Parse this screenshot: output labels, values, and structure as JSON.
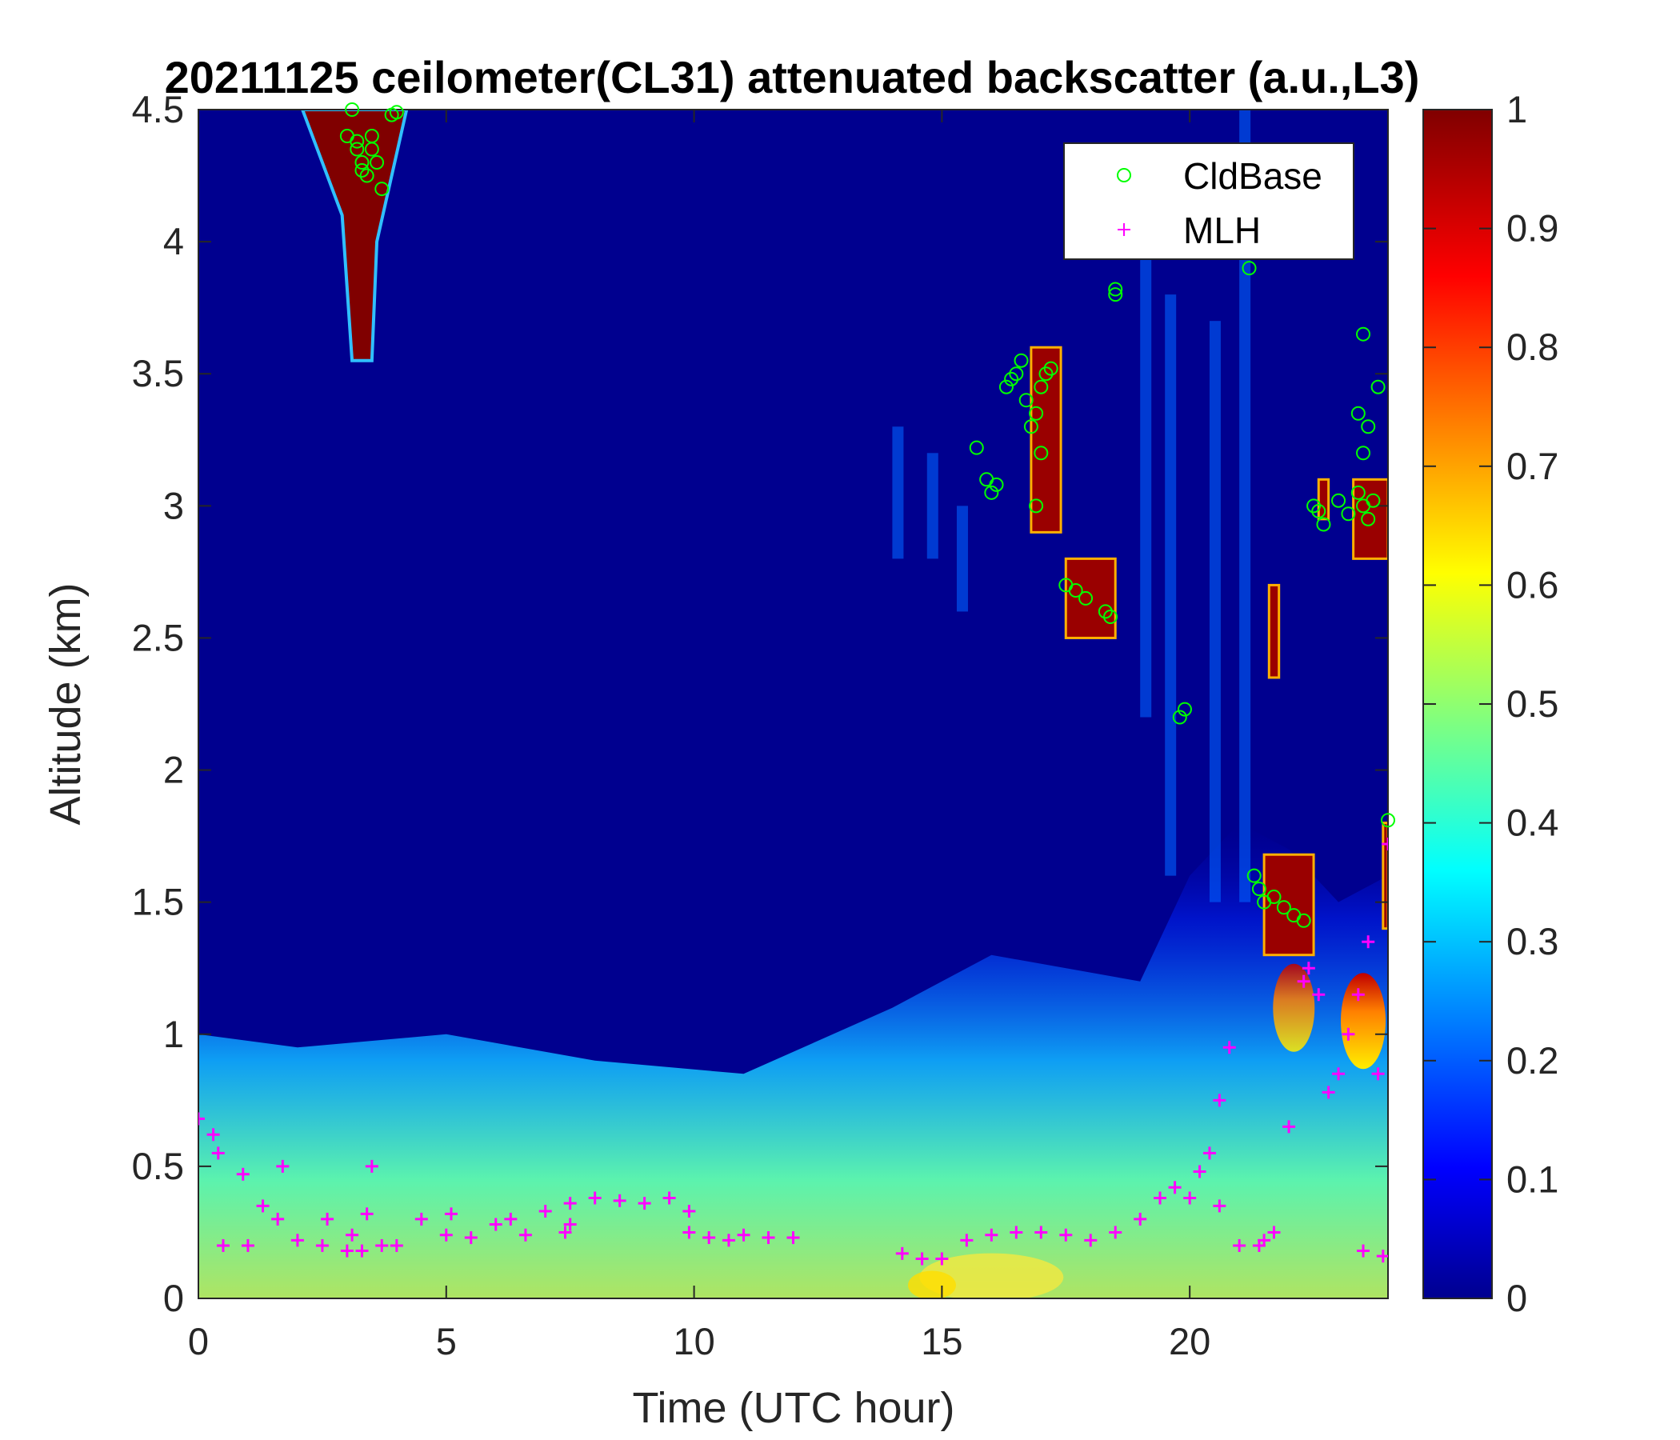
{
  "chart_data": {
    "type": "heatmap",
    "title": "20211125 ceilometer(CL31) attenuated backscatter (a.u.,L3)",
    "xlabel": "Time (UTC hour)",
    "ylabel": "Altitude (km)",
    "xlim": [
      0,
      24
    ],
    "ylim": [
      0,
      4.5
    ],
    "xticks": [
      0,
      5,
      10,
      15,
      20
    ],
    "yticks": [
      0,
      0.5,
      1,
      1.5,
      2,
      2.5,
      3,
      3.5,
      4,
      4.5
    ],
    "colorbar": {
      "colormap": "jet",
      "range": [
        0,
        1
      ],
      "ticks": [
        0,
        0.1,
        0.2,
        0.3,
        0.4,
        0.5,
        0.6,
        0.7,
        0.8,
        0.9,
        1
      ]
    },
    "legend": {
      "position": "top-right",
      "entries": [
        "CldBase",
        "MLH"
      ]
    },
    "colors": {
      "cldbase": "#00ff00",
      "mlh": "#ff00ff",
      "background_field": "#00008f"
    },
    "series": [
      {
        "name": "CldBase",
        "marker": "circle",
        "x": [
          3.0,
          3.1,
          3.2,
          3.3,
          3.4,
          3.5,
          3.6,
          3.7,
          3.9,
          4.0,
          3.3,
          3.5,
          3.2,
          15.7,
          15.9,
          16.0,
          16.1,
          16.3,
          16.4,
          16.5,
          16.6,
          16.7,
          16.8,
          16.9,
          17.0,
          17.1,
          17.2,
          16.9,
          17.0,
          17.5,
          17.7,
          17.9,
          18.3,
          18.4,
          18.5,
          18.5,
          19.8,
          19.9,
          21.2,
          21.3,
          21.4,
          21.5,
          21.7,
          21.9,
          22.1,
          22.3,
          22.5,
          22.6,
          22.7,
          23.0,
          23.2,
          23.4,
          23.5,
          23.6,
          23.8,
          23.5,
          23.6,
          23.7,
          23.4,
          23.5,
          24.0
        ],
        "y": [
          4.4,
          4.5,
          4.35,
          4.3,
          4.25,
          4.4,
          4.3,
          4.2,
          4.48,
          4.49,
          4.27,
          4.35,
          4.38,
          3.22,
          3.1,
          3.05,
          3.08,
          3.45,
          3.48,
          3.5,
          3.55,
          3.4,
          3.3,
          3.35,
          3.45,
          3.5,
          3.52,
          3.0,
          3.2,
          2.7,
          2.68,
          2.65,
          2.6,
          2.58,
          3.8,
          3.82,
          2.2,
          2.23,
          3.9,
          1.6,
          1.55,
          1.5,
          1.52,
          1.48,
          1.45,
          1.43,
          3.0,
          2.98,
          2.93,
          3.02,
          2.97,
          3.05,
          3.65,
          3.3,
          3.45,
          3.0,
          2.95,
          3.02,
          3.35,
          3.2,
          1.81
        ]
      },
      {
        "name": "MLH",
        "marker": "plus",
        "x": [
          0.0,
          0.3,
          0.5,
          1.0,
          1.3,
          1.6,
          2.0,
          2.5,
          3.0,
          3.3,
          3.5,
          3.7,
          4.0,
          4.5,
          5.0,
          5.5,
          6.0,
          6.3,
          6.6,
          7.0,
          7.5,
          8.0,
          8.5,
          9.0,
          9.5,
          9.9,
          10.3,
          10.7,
          11.0,
          11.5,
          12.0,
          14.2,
          14.6,
          15.0,
          15.5,
          16.0,
          16.5,
          17.0,
          17.5,
          18.0,
          18.5,
          19.0,
          19.4,
          19.7,
          20.0,
          20.4,
          20.6,
          20.8,
          21.0,
          21.4,
          21.7,
          22.0,
          22.3,
          22.6,
          22.8,
          23.0,
          23.2,
          23.4,
          23.6,
          23.9,
          0.4,
          0.9,
          1.7,
          2.6,
          3.4,
          3.1,
          7.4,
          9.9,
          20.2,
          20.6,
          21.5,
          22.4,
          23.5,
          23.8,
          24.0,
          5.1,
          7.5
        ],
        "y": [
          0.68,
          0.62,
          0.2,
          0.2,
          0.35,
          0.3,
          0.22,
          0.2,
          0.18,
          0.18,
          0.5,
          0.2,
          0.2,
          0.3,
          0.24,
          0.23,
          0.28,
          0.3,
          0.24,
          0.33,
          0.36,
          0.38,
          0.37,
          0.36,
          0.38,
          0.33,
          0.23,
          0.22,
          0.24,
          0.23,
          0.23,
          0.17,
          0.15,
          0.15,
          0.22,
          0.24,
          0.25,
          0.25,
          0.24,
          0.22,
          0.25,
          0.3,
          0.38,
          0.42,
          0.38,
          0.55,
          0.75,
          0.95,
          0.2,
          0.2,
          0.25,
          0.65,
          1.2,
          1.15,
          0.78,
          0.85,
          1.0,
          1.15,
          1.35,
          0.16,
          0.55,
          0.47,
          0.5,
          0.3,
          0.32,
          0.24,
          0.25,
          0.25,
          0.48,
          0.35,
          0.22,
          1.25,
          0.18,
          0.85,
          1.72,
          0.32,
          0.28
        ]
      }
    ]
  }
}
